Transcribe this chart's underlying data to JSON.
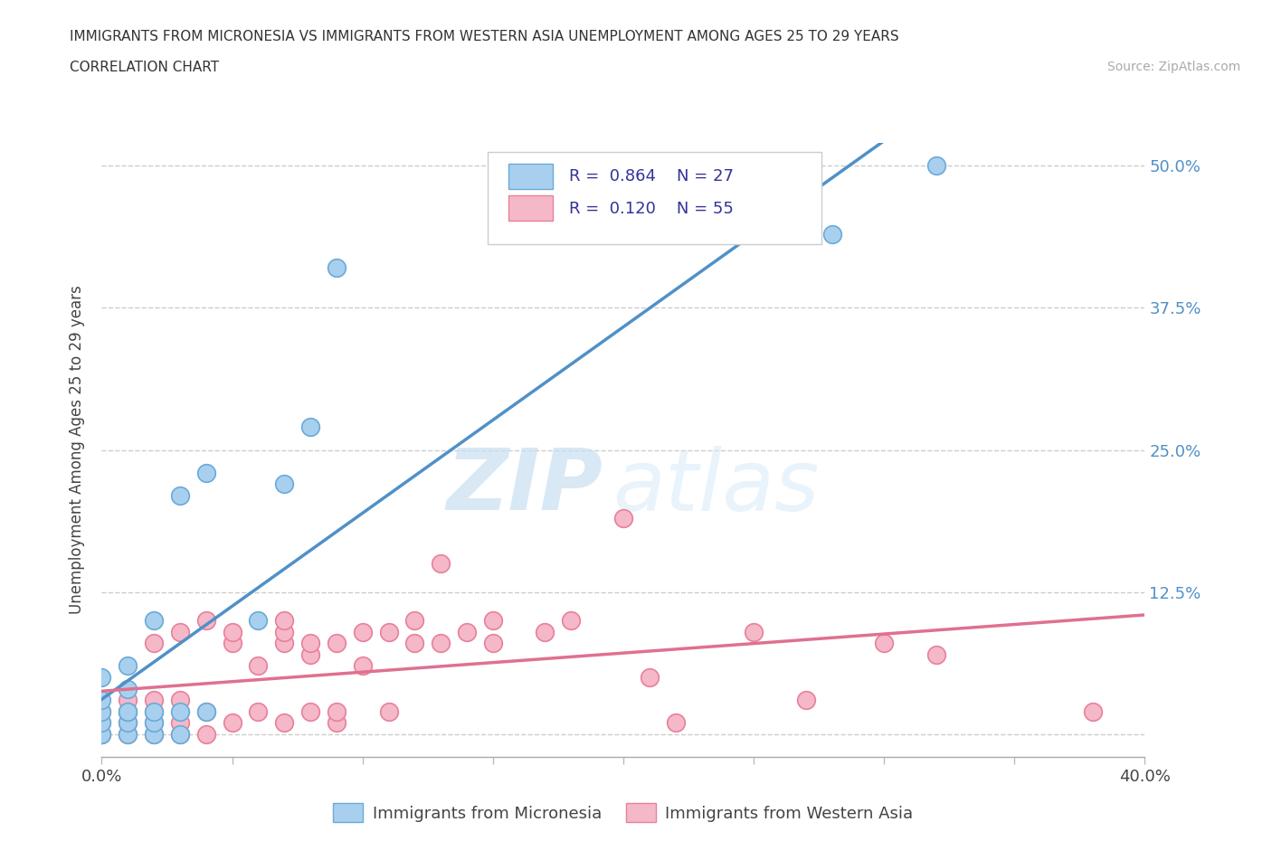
{
  "title_line1": "IMMIGRANTS FROM MICRONESIA VS IMMIGRANTS FROM WESTERN ASIA UNEMPLOYMENT AMONG AGES 25 TO 29 YEARS",
  "title_line2": "CORRELATION CHART",
  "source": "Source: ZipAtlas.com",
  "ylabel": "Unemployment Among Ages 25 to 29 years",
  "xlim": [
    0.0,
    0.4
  ],
  "ylim": [
    -0.02,
    0.52
  ],
  "xticks": [
    0.0,
    0.05,
    0.1,
    0.15,
    0.2,
    0.25,
    0.3,
    0.35,
    0.4
  ],
  "xtick_labels": [
    "0.0%",
    "",
    "",
    "",
    "",
    "",
    "",
    "",
    "40.0%"
  ],
  "ytick_labels": [
    "",
    "12.5%",
    "25.0%",
    "37.5%",
    "50.0%"
  ],
  "yticks": [
    0.0,
    0.125,
    0.25,
    0.375,
    0.5
  ],
  "micronesia_color": "#a8d0ee",
  "western_asia_color": "#f5b8c8",
  "micronesia_edge_color": "#6aaad8",
  "western_asia_edge_color": "#e8809a",
  "micronesia_line_color": "#5090c8",
  "western_asia_line_color": "#e07090",
  "micronesia_R": 0.864,
  "micronesia_N": 27,
  "western_asia_R": 0.12,
  "western_asia_N": 55,
  "watermark_zip": "ZIP",
  "watermark_atlas": "atlas",
  "micronesia_x": [
    0.0,
    0.0,
    0.0,
    0.0,
    0.0,
    0.0,
    0.01,
    0.01,
    0.01,
    0.01,
    0.01,
    0.01,
    0.02,
    0.02,
    0.02,
    0.02,
    0.03,
    0.03,
    0.03,
    0.04,
    0.04,
    0.06,
    0.07,
    0.08,
    0.09,
    0.28,
    0.32
  ],
  "micronesia_y": [
    0.0,
    0.0,
    0.01,
    0.02,
    0.03,
    0.05,
    0.0,
    0.01,
    0.02,
    0.02,
    0.04,
    0.06,
    0.0,
    0.01,
    0.02,
    0.1,
    0.0,
    0.02,
    0.21,
    0.02,
    0.23,
    0.1,
    0.22,
    0.27,
    0.41,
    0.44,
    0.5
  ],
  "western_asia_x": [
    0.0,
    0.0,
    0.0,
    0.01,
    0.01,
    0.01,
    0.01,
    0.02,
    0.02,
    0.02,
    0.02,
    0.02,
    0.03,
    0.03,
    0.03,
    0.03,
    0.04,
    0.04,
    0.04,
    0.05,
    0.05,
    0.05,
    0.06,
    0.06,
    0.07,
    0.07,
    0.07,
    0.07,
    0.08,
    0.08,
    0.08,
    0.09,
    0.09,
    0.09,
    0.1,
    0.1,
    0.11,
    0.11,
    0.12,
    0.12,
    0.13,
    0.13,
    0.14,
    0.15,
    0.15,
    0.17,
    0.18,
    0.2,
    0.21,
    0.22,
    0.25,
    0.27,
    0.3,
    0.32,
    0.38
  ],
  "western_asia_y": [
    0.0,
    0.01,
    0.02,
    0.0,
    0.01,
    0.02,
    0.03,
    0.0,
    0.01,
    0.02,
    0.03,
    0.08,
    0.0,
    0.01,
    0.03,
    0.09,
    0.0,
    0.02,
    0.1,
    0.01,
    0.08,
    0.09,
    0.02,
    0.06,
    0.01,
    0.08,
    0.09,
    0.1,
    0.02,
    0.07,
    0.08,
    0.01,
    0.02,
    0.08,
    0.06,
    0.09,
    0.02,
    0.09,
    0.08,
    0.1,
    0.08,
    0.15,
    0.09,
    0.08,
    0.1,
    0.09,
    0.1,
    0.19,
    0.05,
    0.01,
    0.09,
    0.03,
    0.08,
    0.07,
    0.02
  ]
}
